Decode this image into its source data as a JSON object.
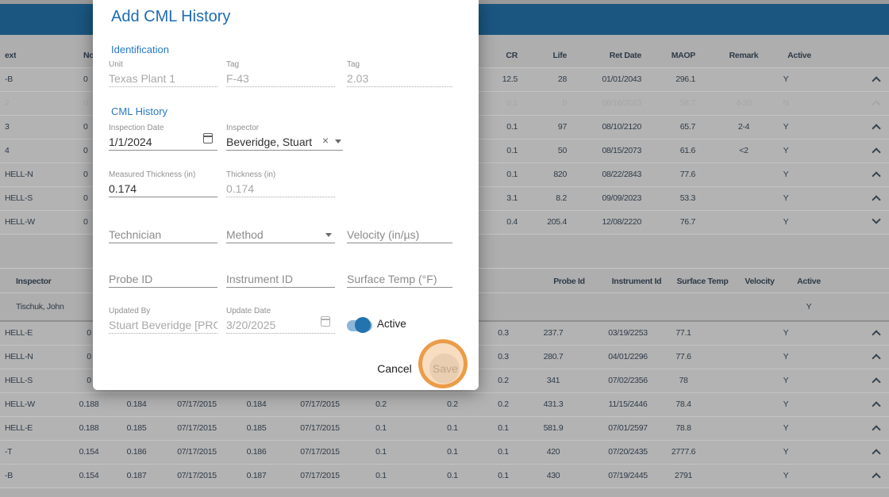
{
  "theme": {
    "topbar_blue": "#1b5680",
    "title_blue": "#1d6cb5",
    "section_blue": "#2779c4",
    "toggle_blue": "#2273ae"
  },
  "annotation": {
    "type": "highlight-circle",
    "border_color": "rgba(233,149,60,0.9)",
    "fill_color": "rgba(242,179,115,0.45)"
  },
  "modal": {
    "title": "Add CML History",
    "identification": {
      "label": "Identification",
      "unit": {
        "label": "Unit",
        "value": "Texas Plant 1"
      },
      "tag": {
        "label": "Tag",
        "value": "F-43"
      },
      "tag2": {
        "label": "Tag",
        "value": "2.03"
      }
    },
    "history": {
      "label": "CML History",
      "inspection_date": {
        "label": "Inspection Date",
        "value": "1/1/2024"
      },
      "inspector": {
        "label": "Inspector",
        "value": "Beveridge, Stuart"
      },
      "measured_thickness": {
        "label": "Measured Thickness (in)",
        "value": "0.174"
      },
      "thickness": {
        "label": "Thickness (in)",
        "value": "0.174"
      },
      "technician": {
        "placeholder": "Technician"
      },
      "method": {
        "placeholder": "Method"
      },
      "velocity": {
        "placeholder": "Velocity (in/µs)"
      },
      "probe_id": {
        "placeholder": "Probe ID"
      },
      "instrument_id": {
        "placeholder": "Instrument ID"
      },
      "surface_temp": {
        "placeholder": "Surface Temp (°F)"
      },
      "updated_by": {
        "label": "Updated By",
        "value": "Stuart Beveridge [PROtect]"
      },
      "update_date": {
        "label": "Update Date",
        "value": "3/20/2025"
      },
      "active": {
        "label": "Active",
        "state": "on"
      }
    },
    "buttons": {
      "cancel": "Cancel",
      "save": "Save"
    }
  },
  "background": {
    "top_table": {
      "header": {
        "name_fragment": "ext",
        "num_fragment": "No",
        "cr": "CR",
        "life": "Life",
        "ret_date": "Ret Date",
        "maop": "MAOP",
        "remark": "Remark",
        "active": "Active"
      },
      "rows": [
        {
          "name": "-B",
          "num": "0",
          "cr": "12.5",
          "life": "28",
          "ret": "01/01/2043",
          "maop": "296.1",
          "remark": "",
          "active": "Y",
          "chevron": "up",
          "faded": false
        },
        {
          "name": "2",
          "num": "0",
          "cr": "0.1",
          "life": "0",
          "ret": "08/16/2023",
          "maop": "58.7",
          "remark": "4-20",
          "active": "N",
          "chevron": "up",
          "faded": true
        },
        {
          "name": "3",
          "num": "0",
          "cr": "0.1",
          "life": "97",
          "ret": "08/10/2120",
          "maop": "65.7",
          "remark": "2-4",
          "active": "Y",
          "chevron": "up",
          "faded": false
        },
        {
          "name": "4",
          "num": "0",
          "cr": "0.1",
          "life": "50",
          "ret": "08/15/2073",
          "maop": "61.6",
          "remark": "<2",
          "active": "Y",
          "chevron": "up",
          "faded": false
        },
        {
          "name": "HELL-N",
          "num": "0",
          "cr": "0.1",
          "life": "820",
          "ret": "08/22/2843",
          "maop": "77.6",
          "remark": "",
          "active": "Y",
          "chevron": "up",
          "faded": false
        },
        {
          "name": "HELL-S",
          "num": "0",
          "cr": "3.1",
          "life": "8.2",
          "ret": "09/09/2023",
          "maop": "53.3",
          "remark": "",
          "active": "Y",
          "chevron": "up",
          "faded": false
        },
        {
          "name": "HELL-W",
          "num": "0",
          "cr": "0.4",
          "life": "205.4",
          "ret": "12/08/2220",
          "maop": "76.7",
          "remark": "",
          "active": "Y",
          "chevron": "down",
          "faded": false
        }
      ]
    },
    "history_section": {
      "header": {
        "inspector": "Inspector",
        "probe_id": "Probe Id",
        "instrument_id": "Instrument Id",
        "surface_temp": "Surface Temp",
        "velocity": "Velocity",
        "active": "Active"
      },
      "row": {
        "inspector": "Tischuk, John",
        "active": "Y"
      }
    },
    "bottom_table": {
      "rows": [
        {
          "name": "HELL-E",
          "cols": [
            "0",
            "",
            "",
            "",
            "",
            "",
            "",
            "0.3",
            "237.7",
            "03/19/2253",
            "77.1"
          ],
          "active": "Y",
          "chevron": "up"
        },
        {
          "name": "HELL-N",
          "cols": [
            "0",
            "",
            "",
            "",
            "",
            "",
            "",
            "0.3",
            "280.7",
            "04/01/2296",
            "77.6"
          ],
          "active": "Y",
          "chevron": "up"
        },
        {
          "name": "HELL-S",
          "cols": [
            "0",
            "",
            "",
            "",
            "",
            "",
            "",
            "0.2",
            "341",
            "07/02/2356",
            "78"
          ],
          "active": "Y",
          "chevron": "up"
        },
        {
          "name": "HELL-W",
          "cols": [
            "0.188",
            "0.184",
            "07/17/2015",
            "0.184",
            "07/17/2015",
            "0.2",
            "0.2",
            "0.2",
            "431.3",
            "11/15/2446",
            "78.4"
          ],
          "active": "Y",
          "chevron": "up"
        },
        {
          "name": "HELL-E",
          "cols": [
            "0.188",
            "0.185",
            "07/17/2015",
            "0.185",
            "07/17/2015",
            "0.1",
            "0.1",
            "0.1",
            "581.9",
            "07/01/2597",
            "78.8"
          ],
          "active": "Y",
          "chevron": "up"
        },
        {
          "name": "-T",
          "cols": [
            "0.154",
            "0.186",
            "07/17/2015",
            "0.186",
            "07/17/2015",
            "0.1",
            "0.1",
            "0.1",
            "420",
            "07/20/2435",
            "2777.6"
          ],
          "active": "Y",
          "chevron": "up"
        },
        {
          "name": "-B",
          "cols": [
            "0.154",
            "0.187",
            "07/17/2015",
            "0.187",
            "07/17/2015",
            "0.1",
            "0.1",
            "0.1",
            "430",
            "07/19/2445",
            "2791"
          ],
          "active": "Y",
          "chevron": "up"
        }
      ]
    }
  }
}
